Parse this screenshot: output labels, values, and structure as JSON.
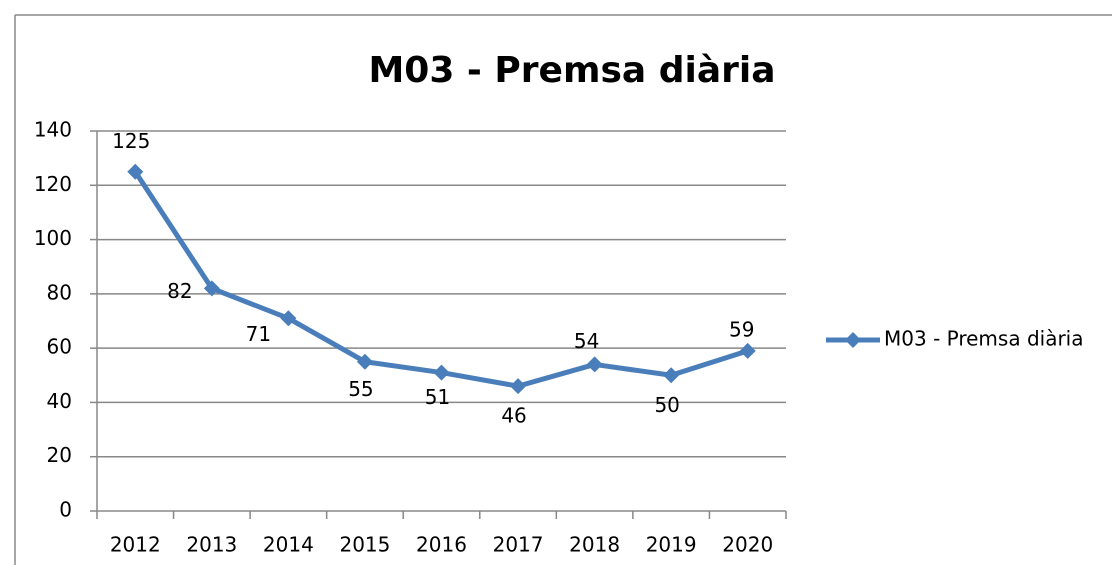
{
  "chart_data": {
    "type": "line",
    "title": "M03 - Premsa diària",
    "categories": [
      "2012",
      "2013",
      "2014",
      "2015",
      "2016",
      "2017",
      "2018",
      "2019",
      "2020"
    ],
    "series": [
      {
        "name": "M03 - Premsa diària",
        "color": "#4a7ebb",
        "values": [
          125,
          82,
          71,
          55,
          51,
          46,
          54,
          50,
          59
        ]
      }
    ],
    "ylim": [
      0,
      140
    ],
    "yticks": [
      0,
      20,
      40,
      60,
      80,
      100,
      120,
      140
    ],
    "grid": true,
    "legend": "right"
  }
}
